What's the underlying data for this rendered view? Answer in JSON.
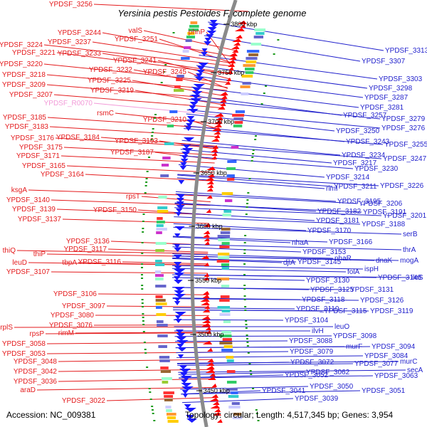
{
  "header": {
    "title": "Yersinia pestis Pestoides F, complete genome"
  },
  "footer": {
    "accession": "Accession: NC_009381",
    "topology": "Topology: circular; Length: 4,517,345 bp; Genes: 3,954"
  },
  "colors": {
    "left_label": "#e41a1c",
    "left_label_special": "#f29ad8",
    "right_label": "#1f1fcc",
    "backbone": "#8a8a8a",
    "forward_gene": "#ff0000",
    "reverse_gene": "#1a1aff",
    "tick": "#1a9a1a"
  },
  "kbp_ticks": [
    "3800 kbp",
    "3750 kbp",
    "3700 kbp",
    "3650 kbp",
    "3600 kbp",
    "3550 kbp",
    "3500 kbp",
    "3450 kbp"
  ],
  "left_labels": [
    {
      "text": "YPDSF_3256"
    },
    {
      "text": "valS"
    },
    {
      "text": "phnP"
    },
    {
      "text": "YPDSF_3244"
    },
    {
      "text": "YPDSF_3251"
    },
    {
      "text": "YPDSF_3224"
    },
    {
      "text": "YPDSF_3237"
    },
    {
      "text": "YPDSF_3221"
    },
    {
      "text": "YPDSF_3233"
    },
    {
      "text": "YPDSF_3241"
    },
    {
      "text": "YPDSF_3220"
    },
    {
      "text": "YPDSF_3232"
    },
    {
      "text": "YPDSF_3245"
    },
    {
      "text": "YPDSF_3218"
    },
    {
      "text": "YPDSF_3225"
    },
    {
      "text": "YPDSF_3209"
    },
    {
      "text": "YPDSF_3219"
    },
    {
      "text": "YPDSF_3207"
    },
    {
      "text": "YPDSF_R0070",
      "special": true
    },
    {
      "text": "rsmC"
    },
    {
      "text": "YPDSF_3185"
    },
    {
      "text": "YPDSF_3210"
    },
    {
      "text": "YPDSF_3183"
    },
    {
      "text": "YPDSF_3176"
    },
    {
      "text": "YPDSF_3184"
    },
    {
      "text": "YPDSF_3193"
    },
    {
      "text": "YPDSF_3175"
    },
    {
      "text": "YPDSF_3171"
    },
    {
      "text": "YPDSF_3187"
    },
    {
      "text": "YPDSF_3165"
    },
    {
      "text": "YPDSF_3164"
    },
    {
      "text": "ksgA"
    },
    {
      "text": "rpsT"
    },
    {
      "text": "YPDSF_3140"
    },
    {
      "text": "YPDSF_3139"
    },
    {
      "text": "YPDSF_3150"
    },
    {
      "text": "YPDSF_3137"
    },
    {
      "text": "YPDSF_3136"
    },
    {
      "text": "thiQ"
    },
    {
      "text": "YPDSF_3117"
    },
    {
      "text": "thiP"
    },
    {
      "text": "leuD"
    },
    {
      "text": "tbpA"
    },
    {
      "text": "YPDSF_3116"
    },
    {
      "text": "YPDSF_3107"
    },
    {
      "text": "YPDSF_3106"
    },
    {
      "text": "YPDSF_3097"
    },
    {
      "text": "YPDSF_3080"
    },
    {
      "text": "YPDSF_3076"
    },
    {
      "text": "rplS"
    },
    {
      "text": "rpsP"
    },
    {
      "text": "rimM"
    },
    {
      "text": "YPDSF_3058"
    },
    {
      "text": "YPDSF_3053"
    },
    {
      "text": "YPDSF_3048"
    },
    {
      "text": "YPDSF_3042"
    },
    {
      "text": "YPDSF_3036"
    },
    {
      "text": "araD"
    },
    {
      "text": "YPDSF_3022"
    }
  ],
  "right_labels": [
    {
      "text": "YPDSF_3313"
    },
    {
      "text": "YPDSF_3307"
    },
    {
      "text": "YPDSF_3303"
    },
    {
      "text": "YPDSF_3298"
    },
    {
      "text": "YPDSF_3287"
    },
    {
      "text": "YPDSF_3281"
    },
    {
      "text": "YPDSF_3257"
    },
    {
      "text": "YPDSF_3279"
    },
    {
      "text": "YPDSF_3276"
    },
    {
      "text": "YPDSF_3250"
    },
    {
      "text": "YPDSF_3255"
    },
    {
      "text": "YPDSF_3243"
    },
    {
      "text": "YPDSF_3234"
    },
    {
      "text": "YPDSF_3247"
    },
    {
      "text": "YPDSF_3217"
    },
    {
      "text": "YPDSF_3230"
    },
    {
      "text": "YPDSF_3214"
    },
    {
      "text": "YPDSF_3211"
    },
    {
      "text": "YPDSF_3226"
    },
    {
      "text": "rimI"
    },
    {
      "text": "YPDSF_3195"
    },
    {
      "text": "YPDSF_3206"
    },
    {
      "text": "YPDSF_3182"
    },
    {
      "text": "YPDSF_3191"
    },
    {
      "text": "YPDSF_3181"
    },
    {
      "text": "YPDSF_3201"
    },
    {
      "text": "YPDSF_3188"
    },
    {
      "text": "YPDSF_3170"
    },
    {
      "text": "serB"
    },
    {
      "text": "nhaA"
    },
    {
      "text": "YPDSF_3166"
    },
    {
      "text": "thrA"
    },
    {
      "text": "YPDSF_3153"
    },
    {
      "text": "nhaR"
    },
    {
      "text": "dnaK"
    },
    {
      "text": "mogA"
    },
    {
      "text": "djlA"
    },
    {
      "text": "YPDSF_3145"
    },
    {
      "text": "ispH"
    },
    {
      "text": "folA"
    },
    {
      "text": "YPDSF_3148"
    },
    {
      "text": "ileS"
    },
    {
      "text": "YPDSF_3130"
    },
    {
      "text": "YPDSF_3125"
    },
    {
      "text": "YPDSF_3131"
    },
    {
      "text": "YPDSF_3118"
    },
    {
      "text": "YPDSF_3126"
    },
    {
      "text": "YPDSF_3110"
    },
    {
      "text": "YPDSF_3115"
    },
    {
      "text": "YPDSF_3119"
    },
    {
      "text": "YPDSF_3104"
    },
    {
      "text": "leuO"
    },
    {
      "text": "ilvH"
    },
    {
      "text": "YPDSF_3098"
    },
    {
      "text": "YPDSF_3088"
    },
    {
      "text": "murF"
    },
    {
      "text": "YPDSF_3094"
    },
    {
      "text": "YPDSF_3079"
    },
    {
      "text": "YPDSF_3084"
    },
    {
      "text": "YPDSF_3072"
    },
    {
      "text": "YPDSF_3077"
    },
    {
      "text": "murC"
    },
    {
      "text": "YPDSF_3062"
    },
    {
      "text": "secA"
    },
    {
      "text": "YPDSF_3063"
    },
    {
      "text": "YPDSF_3052"
    },
    {
      "text": "YPDSF_3050"
    },
    {
      "text": "YPDSF_3041"
    },
    {
      "text": "YPDSF_3051"
    },
    {
      "text": "YPDSF_3039"
    }
  ]
}
